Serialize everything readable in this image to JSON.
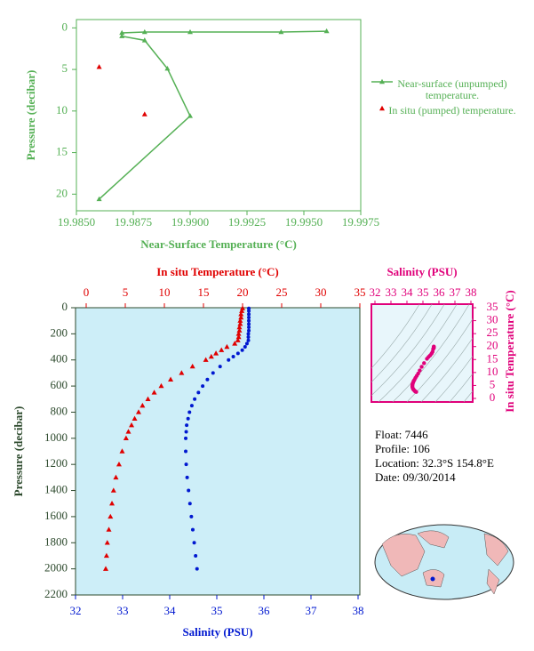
{
  "chart_data": [
    {
      "type": "line",
      "xlabel": "Near-Surface Temperature (°C)",
      "ylabel": "Pressure (decibar)",
      "xlim": [
        19.985,
        19.9975
      ],
      "xticks": [
        {
          "value": 19.985,
          "label": "19.9850"
        },
        {
          "value": 19.9875,
          "label": "19.9875"
        },
        {
          "value": 19.99,
          "label": "19.9900"
        },
        {
          "value": 19.9925,
          "label": "19.9925"
        },
        {
          "value": 19.995,
          "label": "19.9950"
        },
        {
          "value": 19.9975,
          "label": "19.9975"
        }
      ],
      "ylim": [
        -1,
        22
      ],
      "y_inverted": true,
      "yticks": [
        0,
        5,
        10,
        15,
        20
      ],
      "legend": "right",
      "series": [
        {
          "name": "Near-surface (unpumped) temperature.",
          "color": "#55b055",
          "marker": "triangle",
          "line": true,
          "values": [
            19.996,
            19.994,
            19.99,
            19.988,
            19.987,
            19.987,
            19.988,
            19.989,
            19.99,
            19.986
          ],
          "y": [
            0.4,
            0.5,
            0.5,
            0.5,
            0.6,
            1.0,
            1.5,
            4.9,
            10.6,
            20.6
          ]
        },
        {
          "name": "In situ (pumped) temperature.",
          "color": "#e00000",
          "marker": "triangle",
          "line": false,
          "values": [
            19.986,
            19.988
          ],
          "y": [
            4.7,
            10.4
          ]
        }
      ]
    },
    {
      "type": "profile",
      "ylabel": "Pressure (decibar)",
      "ylim": [
        0,
        2200
      ],
      "y_inverted": true,
      "yticks": [
        0,
        200,
        400,
        600,
        800,
        1000,
        1200,
        1400,
        1600,
        1800,
        2000,
        2200
      ],
      "xlabel": "Salinity (PSU)",
      "xlim": [
        32,
        38
      ],
      "xticks": [
        32,
        33,
        34,
        35,
        36,
        37,
        38
      ],
      "x2label": "In situ Temperature (°C)",
      "x2lim": [
        0,
        35
      ],
      "x2ticks": [
        0,
        5,
        10,
        15,
        20,
        25,
        30,
        35
      ],
      "background": "#cdeef8",
      "y": [
        5,
        25,
        50,
        75,
        100,
        125,
        150,
        175,
        200,
        225,
        250,
        275,
        300,
        325,
        350,
        375,
        400,
        450,
        500,
        550,
        600,
        650,
        700,
        750,
        800,
        850,
        900,
        950,
        1000,
        1100,
        1200,
        1300,
        1400,
        1500,
        1600,
        1700,
        1800,
        1900,
        2000
      ],
      "series": [
        {
          "color": "#e00000",
          "marker": "triangle",
          "axis": "x2",
          "values": [
            20.0,
            19.9,
            19.8,
            19.8,
            19.7,
            19.7,
            19.6,
            19.6,
            19.5,
            19.5,
            19.4,
            19.0,
            18.0,
            17.3,
            16.6,
            16.0,
            15.3,
            13.6,
            12.2,
            10.8,
            9.6,
            8.7,
            7.9,
            7.2,
            6.7,
            6.2,
            5.8,
            5.4,
            5.1,
            4.6,
            4.2,
            3.8,
            3.5,
            3.3,
            3.1,
            2.9,
            2.7,
            2.6,
            2.5
          ]
        },
        {
          "color": "#0018d0",
          "marker": "circle",
          "axis": "x",
          "values": [
            35.68,
            35.68,
            35.68,
            35.68,
            35.68,
            35.68,
            35.68,
            35.68,
            35.67,
            35.67,
            35.67,
            35.64,
            35.6,
            35.54,
            35.45,
            35.35,
            35.25,
            35.07,
            34.92,
            34.8,
            34.7,
            34.61,
            34.53,
            34.47,
            34.42,
            34.39,
            34.36,
            34.35,
            34.34,
            34.34,
            34.35,
            34.37,
            34.4,
            34.43,
            34.46,
            34.49,
            34.52,
            34.55,
            34.58
          ]
        }
      ]
    },
    {
      "type": "ts",
      "xlabel": "Salinity (PSU)",
      "xlim": [
        32,
        38
      ],
      "xticks": [
        32,
        33,
        34,
        35,
        36,
        37,
        38
      ],
      "ylabel": "In situ Temperature (°C)",
      "ylim": [
        0,
        35
      ],
      "yticks": [
        0,
        5,
        10,
        15,
        20,
        25,
        30,
        35
      ],
      "color": "#e0007a"
    }
  ],
  "info": [
    "Float:  7446",
    "Profile:  106",
    "Location:  32.3°S  154.8°E",
    "Date:  09/30/2014"
  ]
}
